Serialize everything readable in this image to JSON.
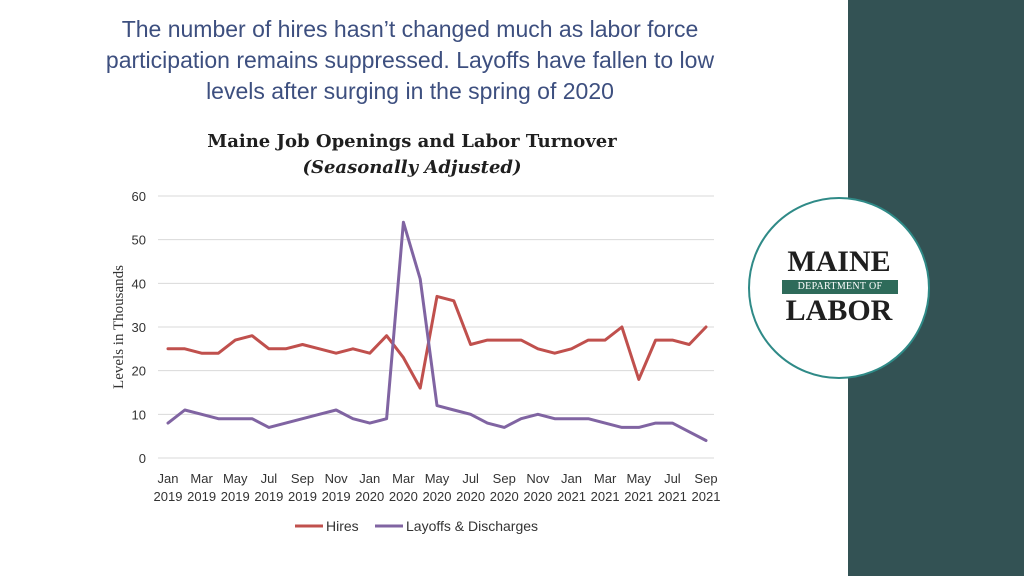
{
  "slide": {
    "heading_lines": [
      "The number of hires hasn’t changed much as labor force",
      "participation remains suppressed. Layoffs have fallen to low",
      "levels after surging in the spring of 2020"
    ]
  },
  "logo": {
    "line1": "MAINE",
    "band": "DEPARTMENT OF",
    "line2": "LABOR"
  },
  "colors": {
    "heading": "#3d4f7f",
    "side_panel": "#335254",
    "hires": "#c0504d",
    "layoffs": "#8064a2",
    "grid": "#d9d9d9"
  },
  "chart_data": {
    "type": "line",
    "title": "Maine Job Openings and Labor Turnover",
    "subtitle": "(Seasonally Adjusted)",
    "xlabel": "",
    "ylabel": "Levels in Thousands",
    "ylim": [
      0,
      60
    ],
    "yticks": [
      "0",
      "10",
      "20",
      "30",
      "40",
      "50",
      "60"
    ],
    "grid": true,
    "legend_position": "bottom",
    "xtick_labels": [
      {
        "month": "Jan",
        "year": "2019"
      },
      {
        "month": "Mar",
        "year": "2019"
      },
      {
        "month": "May",
        "year": "2019"
      },
      {
        "month": "Jul",
        "year": "2019"
      },
      {
        "month": "Sep",
        "year": "2019"
      },
      {
        "month": "Nov",
        "year": "2019"
      },
      {
        "month": "Jan",
        "year": "2020"
      },
      {
        "month": "Mar",
        "year": "2020"
      },
      {
        "month": "May",
        "year": "2020"
      },
      {
        "month": "Jul",
        "year": "2020"
      },
      {
        "month": "Sep",
        "year": "2020"
      },
      {
        "month": "Nov",
        "year": "2020"
      },
      {
        "month": "Jan",
        "year": "2021"
      },
      {
        "month": "Mar",
        "year": "2021"
      },
      {
        "month": "May",
        "year": "2021"
      },
      {
        "month": "Jul",
        "year": "2021"
      },
      {
        "month": "Sep",
        "year": "2021"
      }
    ],
    "x": [
      "Jan 2019",
      "Feb 2019",
      "Mar 2019",
      "Apr 2019",
      "May 2019",
      "Jun 2019",
      "Jul 2019",
      "Aug 2019",
      "Sep 2019",
      "Oct 2019",
      "Nov 2019",
      "Dec 2019",
      "Jan 2020",
      "Feb 2020",
      "Mar 2020",
      "Apr 2020",
      "May 2020",
      "Jun 2020",
      "Jul 2020",
      "Aug 2020",
      "Sep 2020",
      "Oct 2020",
      "Nov 2020",
      "Dec 2020",
      "Jan 2021",
      "Feb 2021",
      "Mar 2021",
      "Apr 2021",
      "May 2021",
      "Jun 2021",
      "Jul 2021",
      "Aug 2021",
      "Sep 2021"
    ],
    "series": [
      {
        "name": "Hires",
        "color": "#c0504d",
        "values": [
          25,
          25,
          24,
          24,
          27,
          28,
          25,
          25,
          26,
          25,
          24,
          25,
          24,
          28,
          23,
          16,
          37,
          36,
          26,
          27,
          27,
          27,
          25,
          24,
          25,
          27,
          27,
          30,
          18,
          27,
          27,
          26,
          30
        ]
      },
      {
        "name": "Layoffs & Discharges",
        "color": "#8064a2",
        "values": [
          8,
          11,
          10,
          9,
          9,
          9,
          7,
          8,
          9,
          10,
          11,
          9,
          8,
          9,
          54,
          41,
          12,
          11,
          10,
          8,
          7,
          9,
          10,
          9,
          9,
          9,
          8,
          7,
          7,
          8,
          8,
          6,
          4
        ]
      }
    ]
  }
}
